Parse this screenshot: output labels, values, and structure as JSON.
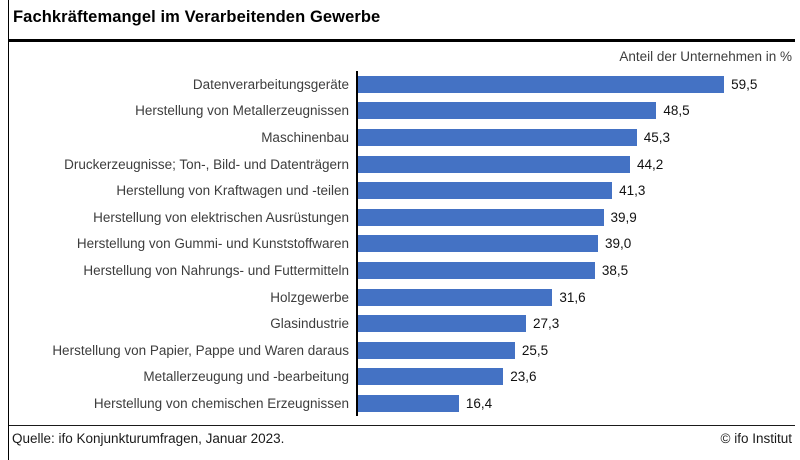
{
  "title": "Fachkräftemangel im Verarbeitenden Gewerbe",
  "subtitle": "Anteil der Unternehmen in %",
  "footer": {
    "source": "Quelle: ifo Konjunkturumfragen, Januar 2023.",
    "copyright": "© ifo Institut"
  },
  "colors": {
    "bar": "#4472C4",
    "axis_line": "#000000",
    "label_text": "#3d3d3d",
    "value_text": "#111111"
  },
  "chart_data": {
    "type": "bar",
    "orientation": "horizontal",
    "title": "Fachkräftemangel im Verarbeitenden Gewerbe",
    "xlabel": "Anteil der Unternehmen in %",
    "ylabel": "",
    "xlim": [
      0,
      72
    ],
    "grid": false,
    "legend": null,
    "categories": [
      "Datenverarbeitungsgeräte",
      "Herstellung von Metallerzeugnissen",
      "Maschinenbau",
      "Druckerzeugnisse; Ton-, Bild- und Datenträgern",
      "Herstellung von Kraftwagen und -teilen",
      "Herstellung von elektrischen Ausrüstungen",
      "Herstellung von Gummi- und Kunststoffwaren",
      "Herstellung von Nahrungs- und Futtermitteln",
      "Holzgewerbe",
      "Glasindustrie",
      "Herstellung von Papier, Pappe und Waren daraus",
      "Metallerzeugung und -bearbeitung",
      "Herstellung von chemischen Erzeugnissen"
    ],
    "values": [
      59.5,
      48.5,
      45.3,
      44.2,
      41.3,
      39.9,
      39.0,
      38.5,
      31.6,
      27.3,
      25.5,
      23.6,
      16.4
    ],
    "value_labels": [
      "59,5",
      "48,5",
      "45,3",
      "44,2",
      "41,3",
      "39,9",
      "39,0",
      "38,5",
      "31,6",
      "27,3",
      "25,5",
      "23,6",
      "16,4"
    ]
  }
}
